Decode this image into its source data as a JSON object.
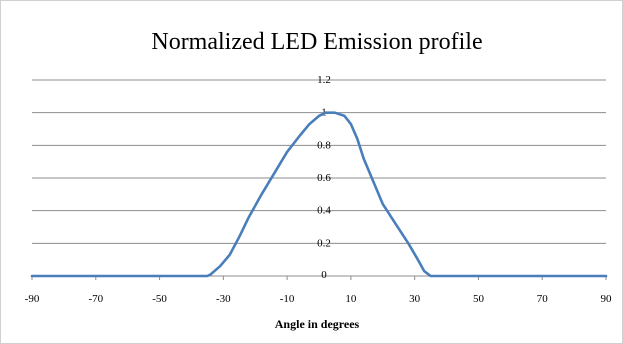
{
  "chart_data": {
    "type": "line",
    "title": "Normalized LED Emission profile",
    "xlabel": "Angle in degrees",
    "ylabel": "",
    "xlim": [
      -90,
      90
    ],
    "ylim": [
      0,
      1.2
    ],
    "x_ticks": [
      "-90",
      "-70",
      "-50",
      "-30",
      "-10",
      "10",
      "30",
      "50",
      "70",
      "90"
    ],
    "y_ticks": [
      "0",
      "0.2",
      "0.4",
      "0.6",
      "0.8",
      "1",
      "1.2"
    ],
    "grid": true,
    "legend": "none",
    "series": [
      {
        "color": "#4a7ebb",
        "points": [
          [
            -90,
            0
          ],
          [
            -80,
            0
          ],
          [
            -70,
            0
          ],
          [
            -60,
            0
          ],
          [
            -50,
            0
          ],
          [
            -40,
            0
          ],
          [
            -35,
            0
          ],
          [
            -34,
            0.01
          ],
          [
            -31,
            0.06
          ],
          [
            -28,
            0.13
          ],
          [
            -25,
            0.24
          ],
          [
            -22,
            0.36
          ],
          [
            -18,
            0.5
          ],
          [
            -14,
            0.63
          ],
          [
            -10,
            0.76
          ],
          [
            -6,
            0.86
          ],
          [
            -3,
            0.93
          ],
          [
            0,
            0.98
          ],
          [
            2,
            1.0
          ],
          [
            5,
            1.0
          ],
          [
            8,
            0.98
          ],
          [
            10,
            0.93
          ],
          [
            12,
            0.84
          ],
          [
            14,
            0.72
          ],
          [
            17,
            0.58
          ],
          [
            20,
            0.44
          ],
          [
            24,
            0.32
          ],
          [
            28,
            0.2
          ],
          [
            31,
            0.1
          ],
          [
            33,
            0.03
          ],
          [
            35,
            0
          ],
          [
            40,
            0
          ],
          [
            50,
            0
          ],
          [
            60,
            0
          ],
          [
            70,
            0
          ],
          [
            80,
            0
          ],
          [
            90,
            0
          ]
        ]
      }
    ]
  }
}
